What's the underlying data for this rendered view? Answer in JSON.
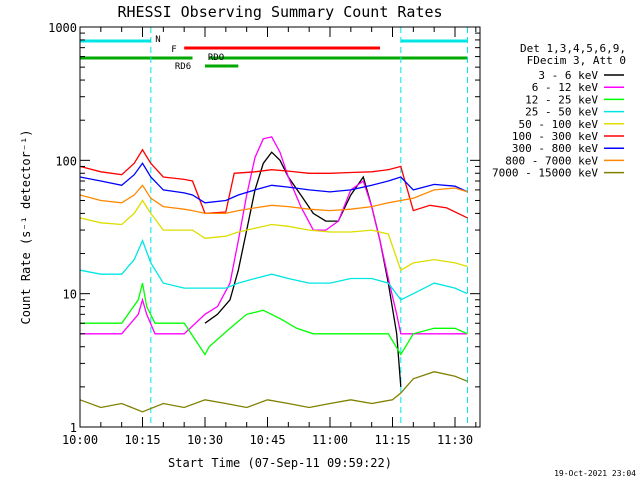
{
  "chart_data": {
    "type": "line",
    "title": "RHESSI Observing Summary Count Rates",
    "xlabel": "Start Time (07-Sep-11 09:59:22)",
    "ylabel": "Count Rate (s⁻¹ detector⁻¹)",
    "x_scale": "time (minutes)",
    "y_scale": "log",
    "xlim": [
      "10:00",
      "11:36"
    ],
    "ylim": [
      1,
      1000
    ],
    "x_ticks": [
      "10:00",
      "10:15",
      "10:30",
      "10:45",
      "11:00",
      "11:15",
      "11:30"
    ],
    "y_ticks": [
      "1",
      "10",
      "100",
      "1000"
    ],
    "legend_header": [
      "Det 1,3,4,5,6,9,",
      "FDecim 3, Att 0"
    ],
    "footer": "19-Oct-2021 23:04",
    "flag_lines": [
      {
        "label": "N",
        "color": "#00e5e5",
        "segments": [
          [
            "10:00",
            "10:17"
          ],
          [
            "11:17",
            "11:33"
          ]
        ]
      },
      {
        "label": "F",
        "color": "#ff0000",
        "segments": [
          [
            "10:25",
            "11:12"
          ]
        ]
      },
      {
        "label": "RDO",
        "color": "#00aa00",
        "segments": [
          [
            "10:00",
            "10:27"
          ],
          [
            "10:31",
            "11:18"
          ],
          [
            "11:18",
            "11:33"
          ]
        ]
      },
      {
        "label": "RD6",
        "color": "#00aa00",
        "segments": [
          [
            "10:30",
            "10:38"
          ]
        ]
      }
    ],
    "night_boundaries": [
      "10:17",
      "11:17",
      "11:33"
    ],
    "series": [
      {
        "name": "3 - 6 keV",
        "color": "#000000",
        "x": [
          "10:30",
          "10:33",
          "10:36",
          "10:38",
          "10:40",
          "10:42",
          "10:44",
          "10:46",
          "10:48",
          "10:50",
          "10:53",
          "10:56",
          "10:59",
          "11:02",
          "11:05",
          "11:08",
          "11:10",
          "11:12",
          "11:14",
          "11:16",
          "11:17"
        ],
        "y": [
          6,
          7,
          9,
          15,
          30,
          60,
          95,
          115,
          100,
          75,
          55,
          40,
          35,
          35,
          55,
          75,
          45,
          25,
          12,
          5,
          2
        ]
      },
      {
        "name": "6 - 12 keV",
        "color": "#ff00ff",
        "x": [
          "10:00",
          "10:10",
          "10:14",
          "10:15",
          "10:16",
          "10:18",
          "10:22",
          "10:25",
          "10:30",
          "10:33",
          "10:36",
          "10:38",
          "10:40",
          "10:42",
          "10:44",
          "10:46",
          "10:48",
          "10:50",
          "10:53",
          "10:56",
          "10:59",
          "11:02",
          "11:05",
          "11:08",
          "11:10",
          "11:12",
          "11:14",
          "11:16",
          "11:17",
          "11:20",
          "11:25",
          "11:30",
          "11:33"
        ],
        "y": [
          5,
          5,
          7,
          9,
          7,
          5,
          5,
          5,
          7,
          8,
          12,
          25,
          55,
          105,
          145,
          150,
          115,
          75,
          45,
          30,
          30,
          35,
          60,
          70,
          45,
          25,
          13,
          7,
          5,
          5,
          5,
          5,
          5
        ]
      },
      {
        "name": "12 - 25 keV",
        "color": "#00ff00",
        "x": [
          "10:00",
          "10:10",
          "10:14",
          "10:15",
          "10:16",
          "10:18",
          "10:22",
          "10:25",
          "10:30",
          "10:31",
          "10:36",
          "10:40",
          "10:44",
          "10:48",
          "10:52",
          "10:56",
          "11:00",
          "11:05",
          "11:10",
          "11:14",
          "11:17",
          "11:20",
          "11:25",
          "11:30",
          "11:33"
        ],
        "y": [
          6,
          6,
          9,
          12,
          8,
          6,
          6,
          6,
          3.5,
          4,
          5.5,
          7,
          7.5,
          6.5,
          5.5,
          5,
          5,
          5,
          5,
          5,
          3.5,
          5,
          5.5,
          5.5,
          5
        ]
      },
      {
        "name": "25 - 50 keV",
        "color": "#00e5e5",
        "x": [
          "10:00",
          "10:05",
          "10:10",
          "10:13",
          "10:15",
          "10:17",
          "10:20",
          "10:25",
          "10:27",
          "10:30",
          "10:35",
          "10:38",
          "10:42",
          "10:46",
          "10:50",
          "10:55",
          "11:00",
          "11:05",
          "11:10",
          "11:14",
          "11:17",
          "11:20",
          "11:25",
          "11:30",
          "11:33"
        ],
        "y": [
          15,
          14,
          14,
          18,
          25,
          17,
          12,
          11,
          11,
          11,
          11,
          12,
          13,
          14,
          13,
          12,
          12,
          13,
          13,
          12,
          9,
          10,
          12,
          11,
          10
        ]
      },
      {
        "name": "50 - 100 keV",
        "color": "#dddd00",
        "x": [
          "10:00",
          "10:05",
          "10:10",
          "10:13",
          "10:15",
          "10:17",
          "10:20",
          "10:25",
          "10:27",
          "10:30",
          "10:35",
          "10:38",
          "10:42",
          "10:46",
          "10:50",
          "10:55",
          "11:00",
          "11:05",
          "11:10",
          "11:14",
          "11:17",
          "11:20",
          "11:25",
          "11:30",
          "11:33"
        ],
        "y": [
          37,
          34,
          33,
          40,
          50,
          40,
          30,
          30,
          30,
          26,
          27,
          29,
          31,
          33,
          32,
          30,
          29,
          29,
          30,
          28,
          15,
          17,
          18,
          17,
          16
        ]
      },
      {
        "name": "100 - 300 keV",
        "color": "#ff0000",
        "x": [
          "10:00",
          "10:05",
          "10:10",
          "10:13",
          "10:15",
          "10:17",
          "10:20",
          "10:25",
          "10:27",
          "10:30",
          "10:35",
          "10:37",
          "10:42",
          "10:46",
          "10:50",
          "10:55",
          "11:00",
          "11:05",
          "11:10",
          "11:14",
          "11:17",
          "11:20",
          "11:24",
          "11:28",
          "11:33"
        ],
        "y": [
          90,
          82,
          78,
          95,
          120,
          95,
          75,
          72,
          70,
          40,
          41,
          80,
          82,
          85,
          83,
          80,
          80,
          81,
          82,
          85,
          90,
          42,
          46,
          44,
          37
        ]
      },
      {
        "name": "300 - 800 keV",
        "color": "#0000ff",
        "x": [
          "10:00",
          "10:05",
          "10:10",
          "10:13",
          "10:15",
          "10:17",
          "10:20",
          "10:25",
          "10:27",
          "10:30",
          "10:35",
          "10:38",
          "10:42",
          "10:46",
          "10:50",
          "10:55",
          "11:00",
          "11:05",
          "11:10",
          "11:14",
          "11:17",
          "11:20",
          "11:25",
          "11:30",
          "11:33"
        ],
        "y": [
          75,
          70,
          65,
          78,
          95,
          75,
          60,
          57,
          55,
          48,
          50,
          55,
          60,
          65,
          63,
          60,
          58,
          60,
          65,
          70,
          75,
          60,
          66,
          64,
          58
        ]
      },
      {
        "name": "800 - 7000 keV",
        "color": "#ff8800",
        "x": [
          "10:00",
          "10:05",
          "10:10",
          "10:13",
          "10:15",
          "10:17",
          "10:20",
          "10:25",
          "10:27",
          "10:30",
          "10:35",
          "10:38",
          "10:42",
          "10:46",
          "10:50",
          "10:55",
          "11:00",
          "11:05",
          "11:10",
          "11:14",
          "11:17",
          "11:20",
          "11:25",
          "11:30",
          "11:33"
        ],
        "y": [
          55,
          50,
          48,
          55,
          65,
          52,
          45,
          43,
          42,
          40,
          40,
          42,
          44,
          46,
          45,
          43,
          42,
          43,
          45,
          48,
          50,
          52,
          60,
          62,
          58
        ]
      },
      {
        "name": "7000 - 15000 keV",
        "color": "#808000",
        "x": [
          "10:00",
          "10:05",
          "10:10",
          "10:15",
          "10:20",
          "10:25",
          "10:30",
          "10:35",
          "10:40",
          "10:45",
          "10:50",
          "10:55",
          "11:00",
          "11:05",
          "11:10",
          "11:15",
          "11:17",
          "11:20",
          "11:25",
          "11:30",
          "11:33"
        ],
        "y": [
          1.6,
          1.4,
          1.5,
          1.3,
          1.5,
          1.4,
          1.6,
          1.5,
          1.4,
          1.6,
          1.5,
          1.4,
          1.5,
          1.6,
          1.5,
          1.6,
          1.8,
          2.3,
          2.6,
          2.4,
          2.2
        ]
      }
    ]
  }
}
